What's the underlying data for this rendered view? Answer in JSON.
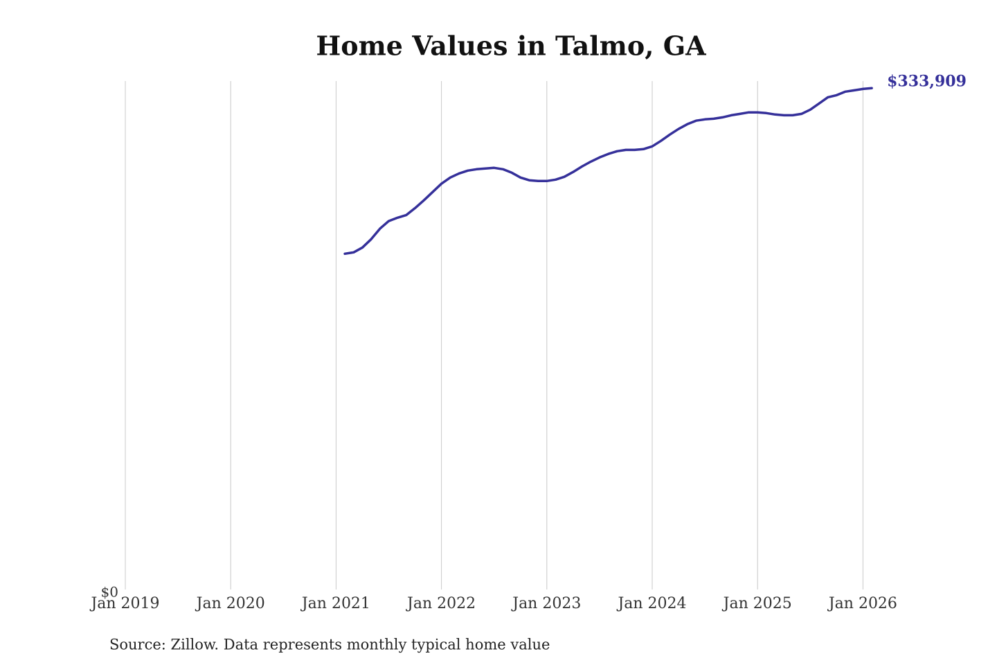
{
  "chart_data": {
    "type": "line",
    "title": "Home Values in Talmo, GA",
    "source": "Source: Zillow. Data represents monthly typical home value",
    "xlim": [
      "2019-01",
      "2026-03"
    ],
    "xticks": [
      {
        "value": "2019-01",
        "label": "Jan 2019"
      },
      {
        "value": "2020-01",
        "label": "Jan 2020"
      },
      {
        "value": "2021-01",
        "label": "Jan 2021"
      },
      {
        "value": "2022-01",
        "label": "Jan 2022"
      },
      {
        "value": "2023-01",
        "label": "Jan 2023"
      },
      {
        "value": "2024-01",
        "label": "Jan 2024"
      },
      {
        "value": "2025-01",
        "label": "Jan 2025"
      },
      {
        "value": "2026-01",
        "label": "Jan 2026"
      }
    ],
    "ylim": [
      0,
      340000
    ],
    "yticks": [
      {
        "value": 0,
        "label": "$0"
      }
    ],
    "grid": true,
    "x": [
      "2021-02",
      "2021-03",
      "2021-04",
      "2021-05",
      "2021-06",
      "2021-07",
      "2021-08",
      "2021-09",
      "2021-10",
      "2021-11",
      "2021-12",
      "2022-01",
      "2022-02",
      "2022-03",
      "2022-04",
      "2022-05",
      "2022-06",
      "2022-07",
      "2022-08",
      "2022-09",
      "2022-10",
      "2022-11",
      "2022-12",
      "2023-01",
      "2023-02",
      "2023-03",
      "2023-04",
      "2023-05",
      "2023-06",
      "2023-07",
      "2023-08",
      "2023-09",
      "2023-10",
      "2023-11",
      "2023-12",
      "2024-01",
      "2024-02",
      "2024-03",
      "2024-04",
      "2024-05",
      "2024-06",
      "2024-07",
      "2024-08",
      "2024-09",
      "2024-10",
      "2024-11",
      "2024-12",
      "2025-01",
      "2025-02",
      "2025-03",
      "2025-04",
      "2025-05",
      "2025-06",
      "2025-07",
      "2025-08",
      "2025-09",
      "2025-10",
      "2025-11",
      "2025-12",
      "2026-01",
      "2026-02"
    ],
    "series": [
      {
        "name": "Home value",
        "color": "#35309a",
        "values": [
          224400,
          225300,
          228500,
          234000,
          241000,
          246000,
          248200,
          250000,
          254600,
          259700,
          265200,
          270700,
          274800,
          277500,
          279400,
          280300,
          280800,
          281200,
          280300,
          278000,
          274800,
          273000,
          272500,
          272500,
          273400,
          275300,
          278500,
          282100,
          285300,
          288100,
          290400,
          292200,
          293100,
          293100,
          293600,
          295400,
          299100,
          303200,
          306900,
          310100,
          312400,
          313300,
          313700,
          314600,
          316000,
          316900,
          317900,
          317900,
          317400,
          316500,
          316000,
          316000,
          316900,
          319700,
          323800,
          327900,
          329300,
          331600,
          332500,
          333400,
          333909
        ],
        "value_labels": [
          null,
          null,
          null,
          null,
          null,
          null,
          null,
          null,
          null,
          null,
          null,
          null,
          null,
          null,
          null,
          null,
          null,
          null,
          null,
          null,
          null,
          null,
          null,
          null,
          null,
          null,
          null,
          null,
          null,
          null,
          null,
          null,
          null,
          null,
          null,
          null,
          null,
          null,
          null,
          null,
          null,
          null,
          null,
          null,
          null,
          null,
          null,
          null,
          null,
          null,
          null,
          null,
          null,
          null,
          null,
          null,
          null,
          null,
          null,
          null,
          "$333,909"
        ]
      }
    ]
  }
}
